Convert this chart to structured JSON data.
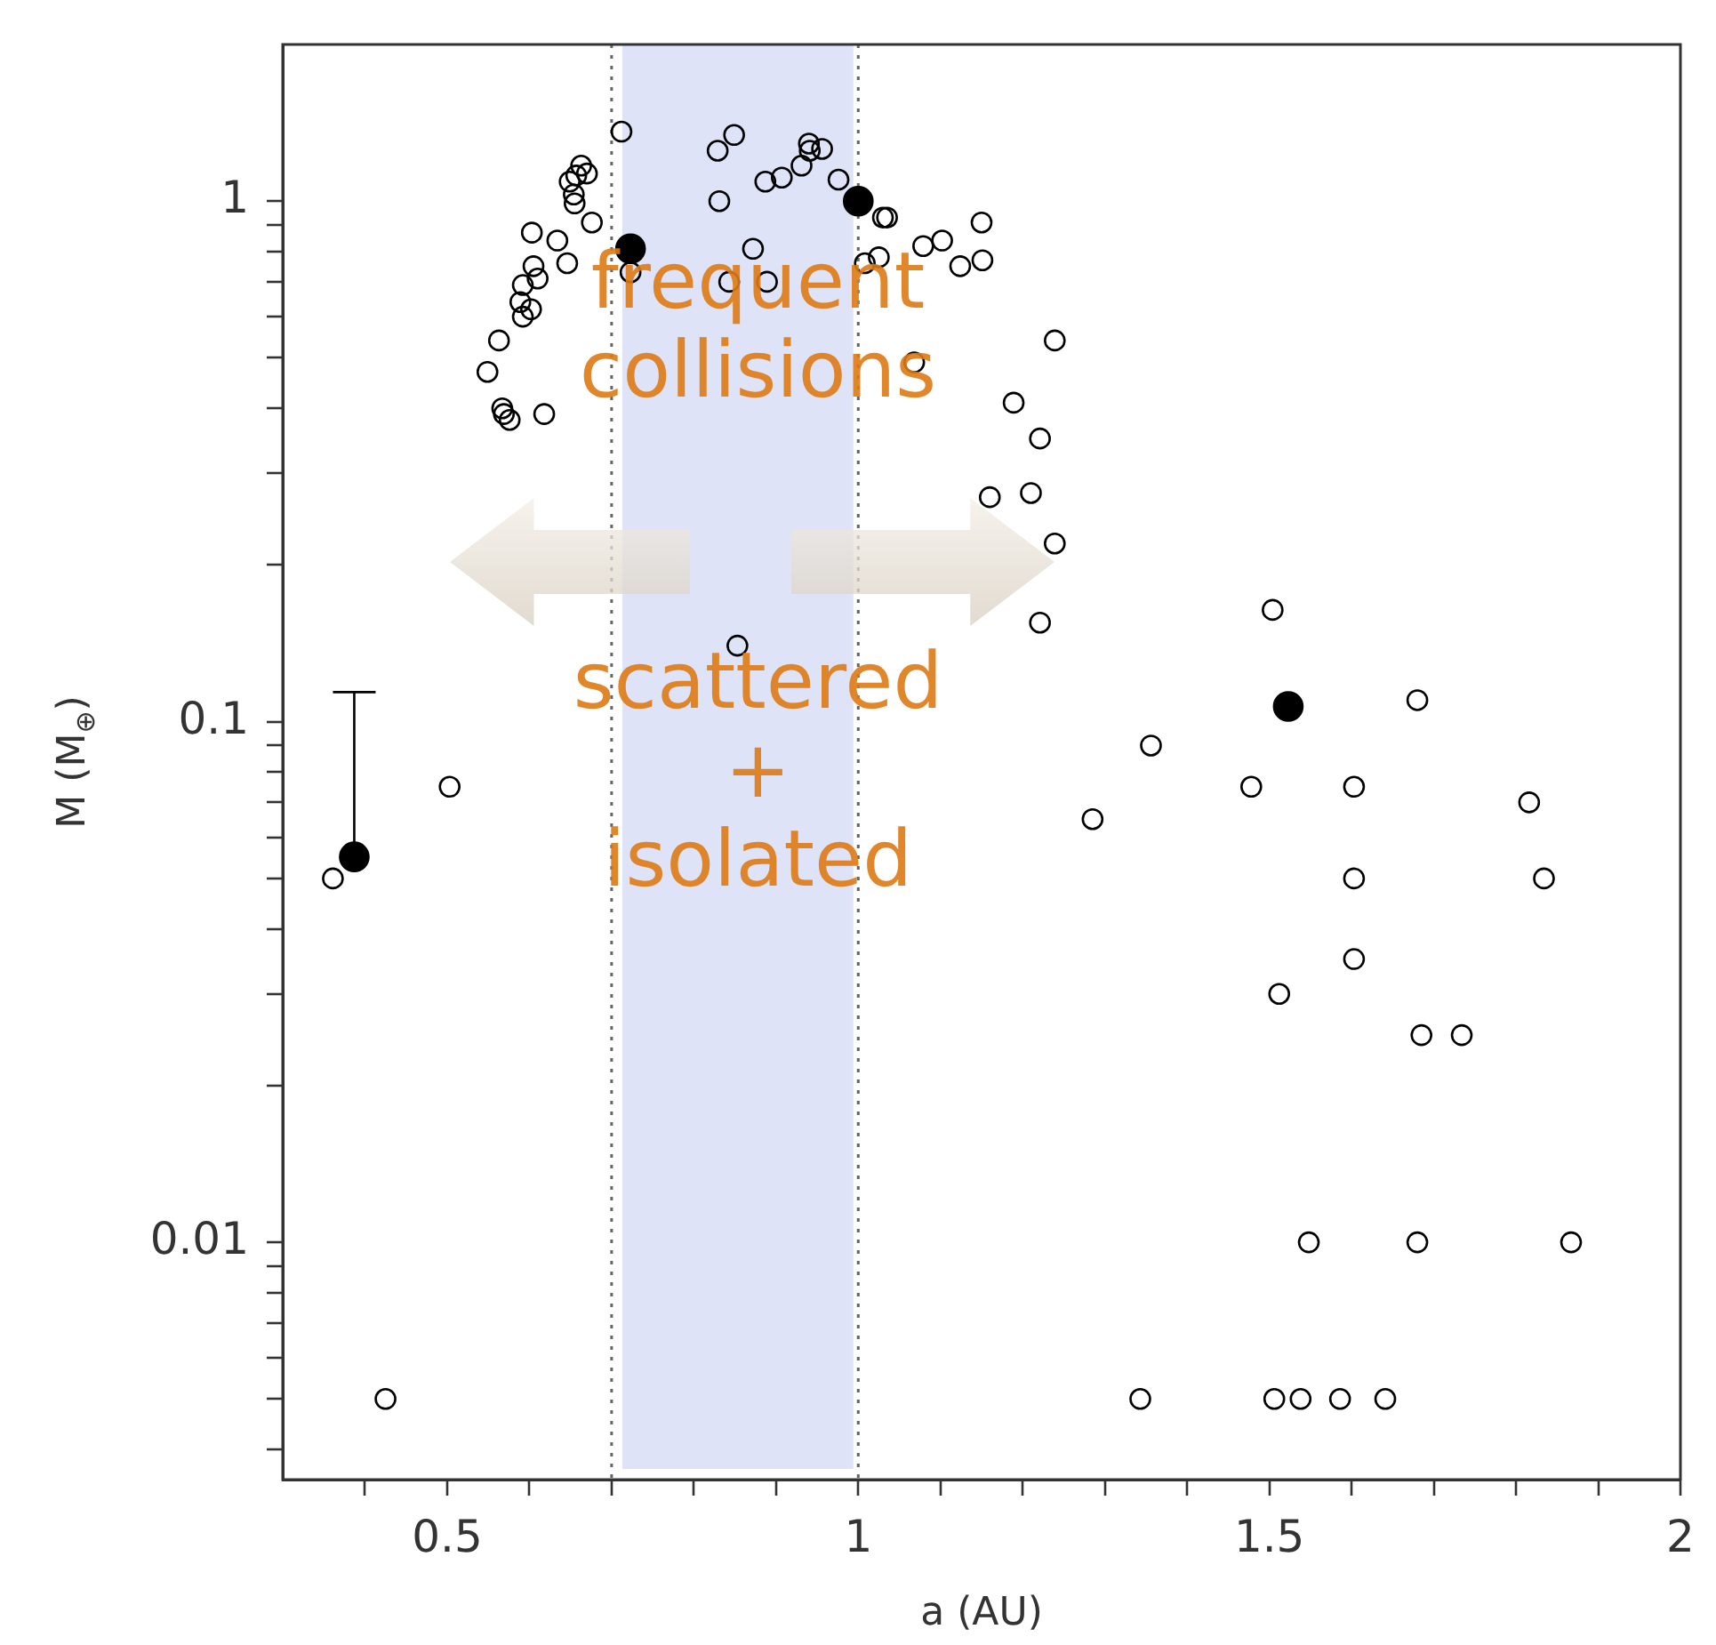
{
  "chart_data": {
    "type": "scatter",
    "xlabel": "a (AU)",
    "ylabel": "M (M$_{⊕}$)",
    "log": "y",
    "marker": "circle",
    "legend": false,
    "xlim": [
      0.3,
      2
    ],
    "xticks": [
      {
        "value": 0.4,
        "label": null
      },
      0.5,
      {
        "value": 0.6,
        "label": null
      },
      {
        "value": 0.7,
        "label": null
      },
      {
        "value": 0.8,
        "label": null
      },
      {
        "value": 0.9,
        "label": null
      },
      1,
      {
        "value": 1.1,
        "label": null
      },
      {
        "value": 1.2,
        "label": null
      },
      {
        "value": 1.3,
        "label": null
      },
      {
        "value": 1.4,
        "label": null
      },
      1.5,
      {
        "value": 1.6,
        "label": null
      },
      {
        "value": 1.7,
        "label": null
      },
      {
        "value": 1.8,
        "label": null
      },
      {
        "value": 1.9,
        "label": null
      },
      2
    ],
    "ylim": [
      0.0035,
      2
    ],
    "yticks": [
      {
        "value": 0.004,
        "label": null
      },
      {
        "value": 0.005,
        "label": null
      },
      {
        "value": 0.006,
        "label": null
      },
      {
        "value": 0.007,
        "label": null
      },
      {
        "value": 0.008,
        "label": null
      },
      {
        "value": 0.009,
        "label": null
      },
      0.01,
      {
        "value": 0.02,
        "label": null
      },
      {
        "value": 0.03,
        "label": null
      },
      {
        "value": 0.04,
        "label": null
      },
      {
        "value": 0.05,
        "label": null
      },
      {
        "value": 0.06,
        "label": null
      },
      {
        "value": 0.07,
        "label": null
      },
      {
        "value": 0.08,
        "label": null
      },
      {
        "value": 0.09,
        "label": null
      },
      0.1,
      {
        "value": 0.2,
        "label": null
      },
      {
        "value": 0.3,
        "label": null
      },
      {
        "value": 0.4,
        "label": null
      },
      {
        "value": 0.5,
        "label": null
      },
      {
        "value": 0.6,
        "label": null
      },
      {
        "value": 0.7,
        "label": null
      },
      {
        "value": 0.8,
        "label": null
      },
      {
        "value": 0.9,
        "label": null
      },
      1
    ],
    "series": [
      {
        "color": "#000000",
        "x": [
          0.712,
          0.849,
          0.829,
          0.94,
          0.956,
          0.941,
          0.931,
          0.907,
          0.887,
          0.976,
          0.831,
          1.03,
          1.035,
          0.723,
          0.872,
          0.843,
          0.889,
          1.15,
          1.079,
          1.102,
          1.025,
          1.008,
          1.124,
          1.151,
          1.239,
          1.068,
          1.189,
          1.221,
          1.16,
          1.21,
          1.239,
          1.221,
          0.853,
          0.663,
          0.67,
          0.649,
          0.657,
          0.654,
          0.655,
          0.676,
          0.603,
          0.634,
          0.646,
          0.605,
          0.61,
          0.592,
          0.589,
          0.602,
          0.592,
          0.563,
          0.549,
          0.569,
          0.576,
          0.567,
          0.618,
          0.361,
          0.503,
          0.425,
          1.504,
          1.68,
          1.356,
          1.478,
          1.603,
          1.285,
          1.816,
          1.603,
          1.834,
          1.603,
          1.512,
          1.685,
          1.734,
          1.548,
          1.68,
          1.867,
          1.343,
          1.506,
          1.538,
          1.586,
          1.641
        ],
        "values": [
          1.36,
          1.34,
          1.25,
          1.29,
          1.26,
          1.25,
          1.17,
          1.11,
          1.09,
          1.1,
          1.0,
          0.93,
          0.93,
          0.73,
          0.81,
          0.7,
          0.7,
          0.91,
          0.82,
          0.84,
          0.78,
          0.76,
          0.75,
          0.77,
          0.54,
          0.49,
          0.41,
          0.35,
          0.27,
          0.275,
          0.22,
          0.155,
          0.14,
          1.17,
          1.13,
          1.09,
          1.12,
          1.03,
          0.99,
          0.91,
          0.87,
          0.84,
          0.76,
          0.75,
          0.71,
          0.69,
          0.64,
          0.62,
          0.6,
          0.54,
          0.47,
          0.39,
          0.38,
          0.4,
          0.39,
          0.05,
          0.075,
          0.005,
          0.164,
          0.11,
          0.09,
          0.075,
          0.075,
          0.065,
          0.07,
          0.05,
          0.05,
          0.035,
          0.03,
          0.025,
          0.025,
          0.01,
          0.01,
          0.01,
          0.005,
          0.005,
          0.005,
          0.005,
          0.005
        ]
      },
      {
        "color": "#000000",
        "x": [
          0.387,
          0.723,
          1.0,
          1.523
        ],
        "values": [
          0.055,
          0.81,
          1.0,
          0.107
        ],
        "errors": [
          [
            0.055,
            0.114
          ],
          null,
          null,
          null
        ]
      }
    ],
    "ref_lines": [
      {
        "axis": "x",
        "value": 0.7,
        "color": "#666666",
        "line_style": "dotted"
      },
      {
        "axis": "x",
        "value": 1.0,
        "color": "#666666",
        "line_style": "dotted"
      }
    ],
    "bands": [
      {
        "axis": "x",
        "from": 0.713,
        "to": 0.994,
        "color": "#dfe3f7"
      }
    ],
    "annotations": [
      "frequent collisions",
      "scattered + isolated"
    ]
  }
}
